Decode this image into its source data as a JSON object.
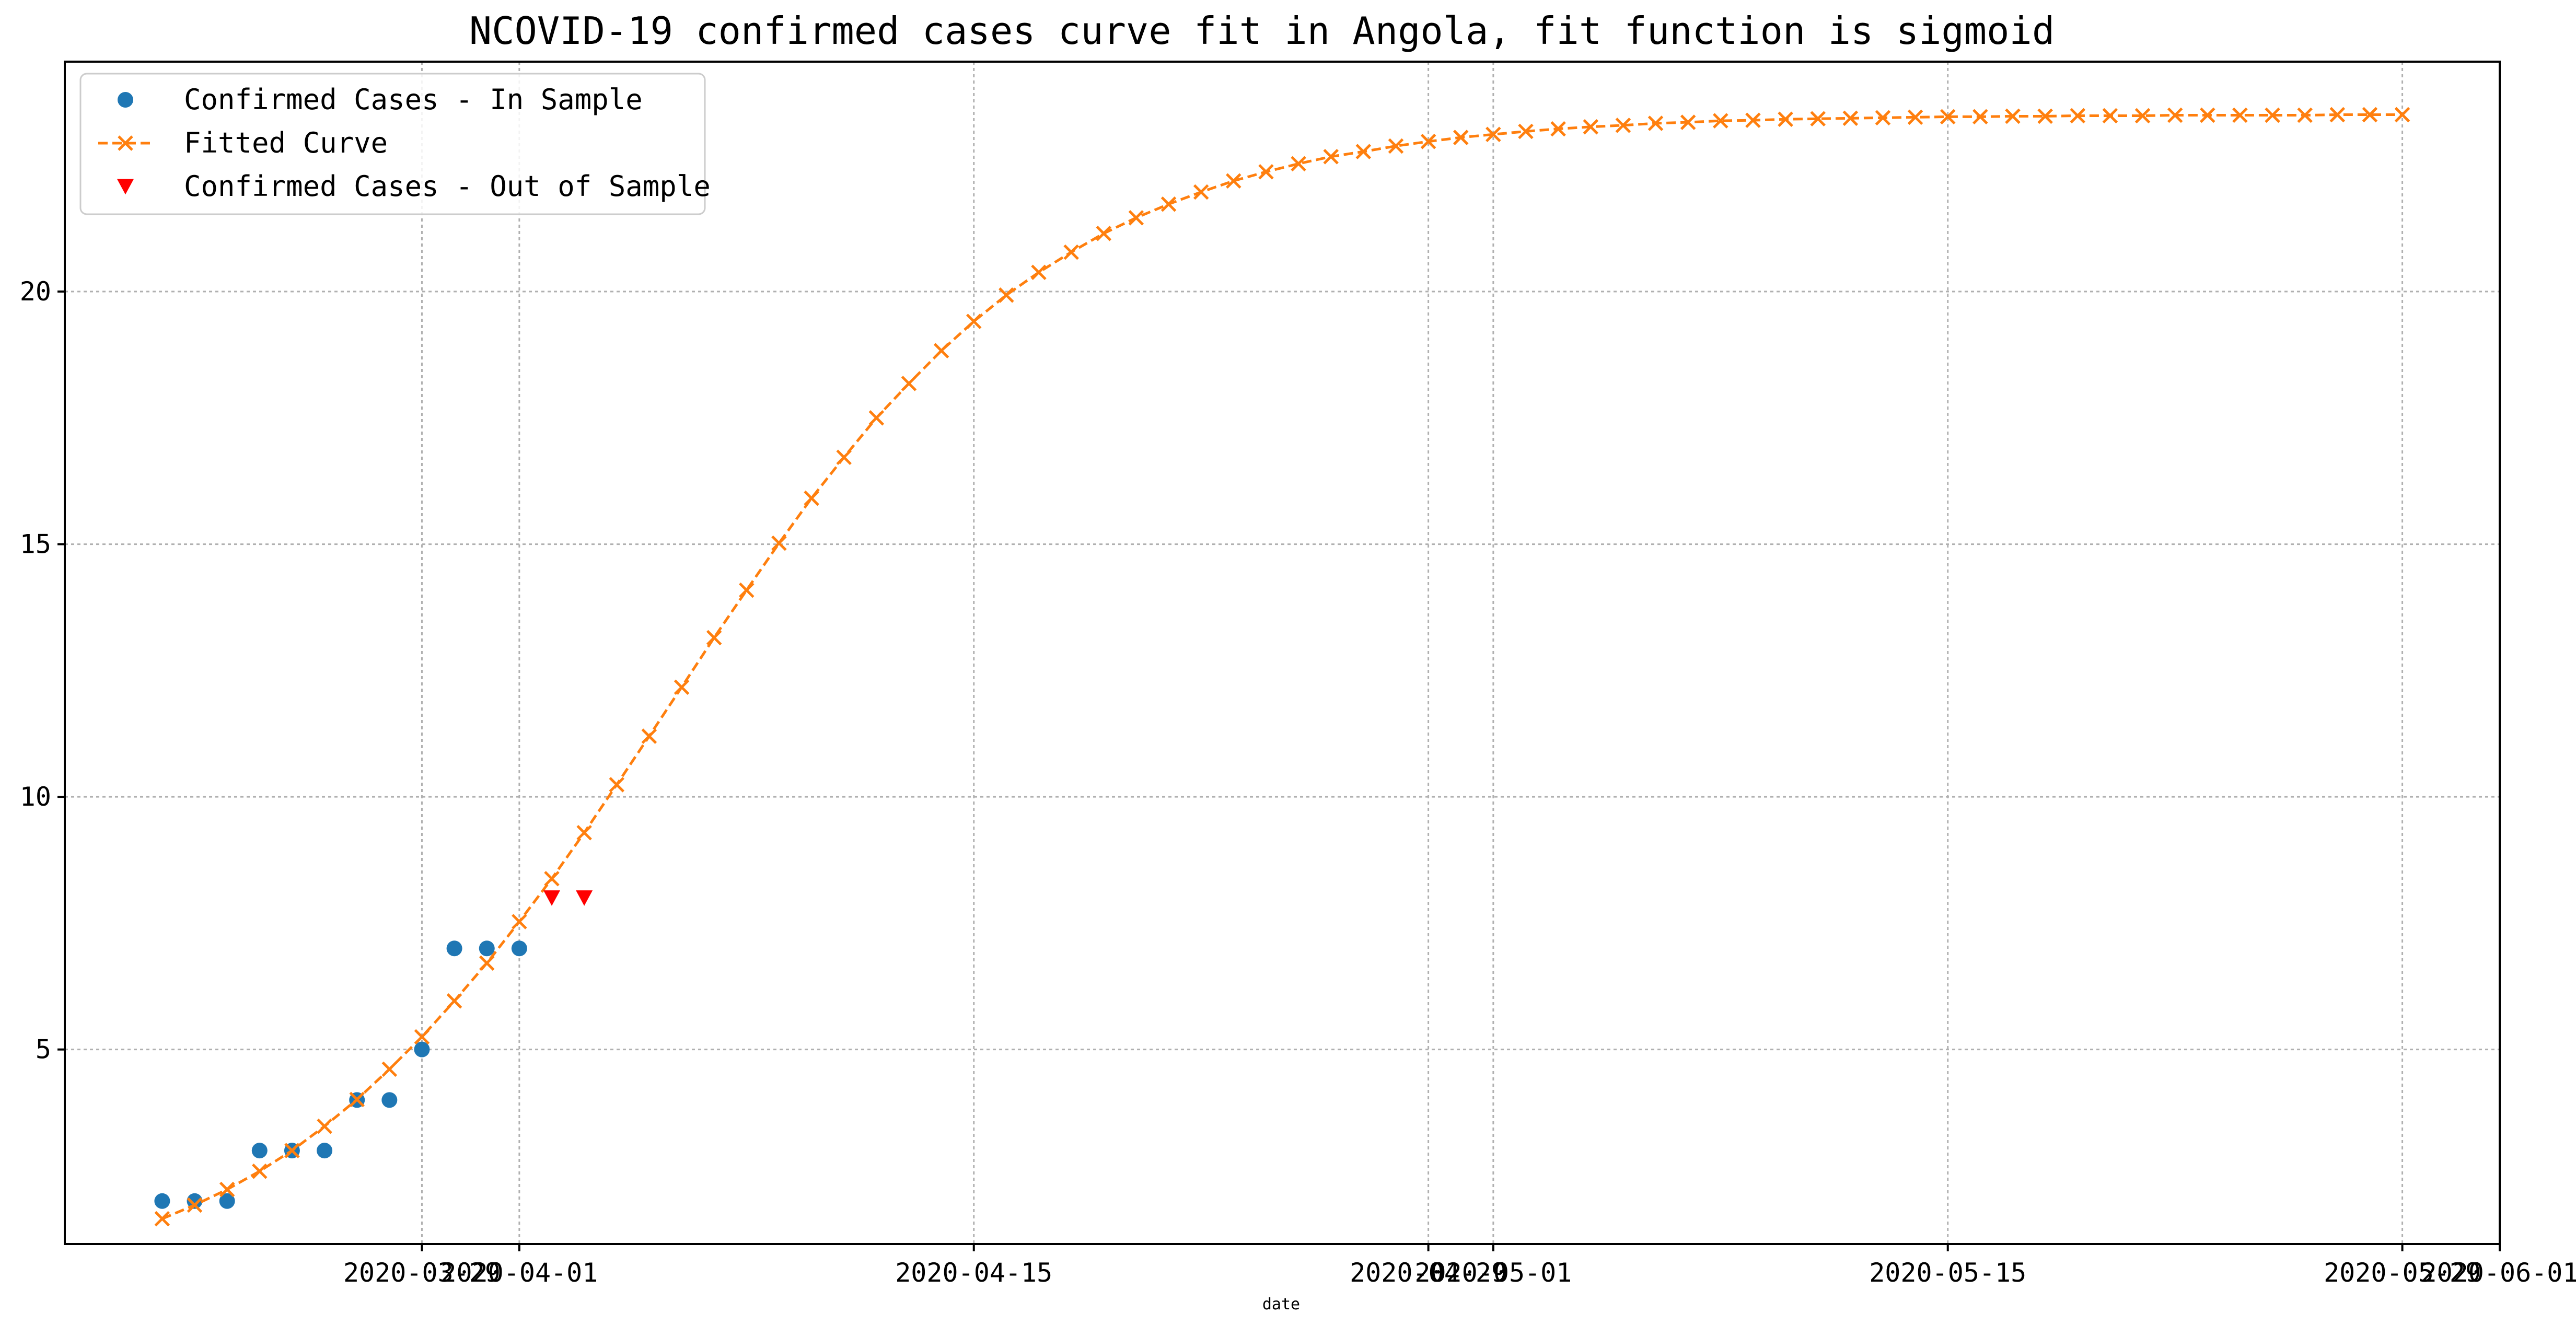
{
  "chart_data": {
    "type": "line",
    "title": "NCOVID-19 confirmed cases curve fit in Angola, fit function is sigmoid",
    "xlabel": "date",
    "ylabel": "",
    "x_type": "date",
    "xlim": [
      "2020-03-18",
      "2020-06-01"
    ],
    "ylim": [
      1.15,
      24.55
    ],
    "grid": true,
    "legend_position": "top-left",
    "x_ticks": [
      {
        "value": "2020-03-29",
        "label": "2020-03-29"
      },
      {
        "value": "2020-04-01",
        "label": "2020-04-01"
      },
      {
        "value": "2020-04-15",
        "label": "2020-04-15"
      },
      {
        "value": "2020-04-29",
        "label": "2020-04-29"
      },
      {
        "value": "2020-05-01",
        "label": "2020-05-01"
      },
      {
        "value": "2020-05-15",
        "label": "2020-05-15"
      },
      {
        "value": "2020-05-29",
        "label": "2020-05-29"
      },
      {
        "value": "2020-06-01",
        "label": "2020-06-01"
      }
    ],
    "y_ticks": [
      5,
      10,
      15,
      20
    ],
    "series": [
      {
        "name": "Confirmed Cases - In Sample",
        "kind": "scatter",
        "marker": "circle",
        "color": "#1f77b4",
        "x": [
          "2020-03-21",
          "2020-03-22",
          "2020-03-23",
          "2020-03-24",
          "2020-03-25",
          "2020-03-26",
          "2020-03-27",
          "2020-03-28",
          "2020-03-29",
          "2020-03-30",
          "2020-03-31",
          "2020-04-01"
        ],
        "y": [
          2,
          2,
          2,
          3,
          3,
          3,
          4,
          4,
          5,
          7,
          7,
          7
        ]
      },
      {
        "name": "Fitted Curve",
        "kind": "line",
        "marker": "x",
        "linestyle": "dashed",
        "color": "#ff7f0e",
        "x_start": "2020-03-21",
        "x_step_days": 1,
        "y": [
          1.65,
          1.92,
          2.23,
          2.59,
          3.0,
          3.48,
          4.01,
          4.61,
          5.25,
          5.96,
          6.71,
          7.53,
          8.38,
          9.29,
          10.24,
          11.2,
          12.17,
          13.15,
          14.09,
          15.02,
          15.91,
          16.72,
          17.5,
          18.18,
          18.83,
          19.41,
          19.93,
          20.38,
          20.78,
          21.15,
          21.46,
          21.73,
          21.97,
          22.19,
          22.37,
          22.53,
          22.67,
          22.77,
          22.88,
          22.97,
          23.05,
          23.11,
          23.17,
          23.22,
          23.26,
          23.29,
          23.33,
          23.35,
          23.38,
          23.39,
          23.41,
          23.42,
          23.43,
          23.44,
          23.45,
          23.46,
          23.46,
          23.47,
          23.47,
          23.48,
          23.48,
          23.48,
          23.49,
          23.49,
          23.49,
          23.49,
          23.49,
          23.5,
          23.5,
          23.5
        ]
      },
      {
        "name": "Confirmed Cases - Out of Sample",
        "kind": "scatter",
        "marker": "triangle-down",
        "color": "#ff0000",
        "x": [
          "2020-04-02",
          "2020-04-03"
        ],
        "y": [
          8,
          8
        ]
      }
    ]
  }
}
